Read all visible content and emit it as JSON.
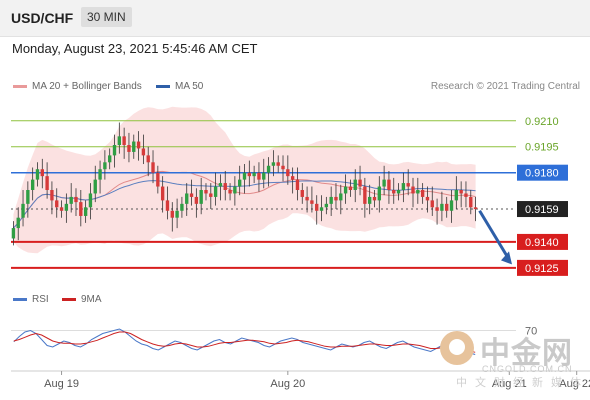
{
  "header": {
    "symbol": "USD/CHF",
    "timeframe": "30 MIN"
  },
  "datetime": "Monday, August 23, 2021 5:45:46 AM CET",
  "legend_main": [
    {
      "label": "MA 20 + Bollinger Bands",
      "color": "#e99a9a"
    },
    {
      "label": "MA 50",
      "color": "#2e5fa8"
    }
  ],
  "credit": "Research © 2021 Trading Central",
  "legend_rsi": [
    {
      "label": "RSI",
      "color": "#4a78c8"
    },
    {
      "label": "9MA",
      "color": "#cc2222"
    }
  ],
  "colors": {
    "up": "#2f9e44",
    "down": "#d63a3a",
    "resistance": "#8fc23e",
    "pivot": "#2e6fd8",
    "support": "#d81e1e",
    "current": "#222222"
  },
  "watermark": {
    "name": "中金网",
    "url": "CNGOLD.COM.CN",
    "sub": "中文财经新媒体"
  },
  "chart_data": {
    "type": "candlestick",
    "y_range": [
      0.9118,
      0.9222
    ],
    "levels": [
      {
        "label": "0.9210",
        "value": 0.921,
        "kind": "resistance"
      },
      {
        "label": "0.9195",
        "value": 0.9195,
        "kind": "resistance"
      },
      {
        "label": "0.9180",
        "value": 0.918,
        "kind": "pivot"
      },
      {
        "label": "0.9159",
        "value": 0.9159,
        "kind": "current"
      },
      {
        "label": "0.9140",
        "value": 0.914,
        "kind": "support"
      },
      {
        "label": "0.9125",
        "value": 0.9125,
        "kind": "support"
      }
    ],
    "x_ticks": [
      {
        "label": "Aug 19",
        "index": 10
      },
      {
        "label": "Aug 20",
        "index": 57
      },
      {
        "label": "Aug 21",
        "index": 103
      },
      {
        "label": "Aug 22",
        "index": 117
      }
    ],
    "closes": [
      0.9148,
      0.9154,
      0.9162,
      0.917,
      0.9176,
      0.9182,
      0.9178,
      0.917,
      0.9164,
      0.916,
      0.9158,
      0.9162,
      0.9166,
      0.9163,
      0.9155,
      0.916,
      0.9168,
      0.9176,
      0.9182,
      0.9186,
      0.919,
      0.9196,
      0.9201,
      0.9196,
      0.9192,
      0.9198,
      0.9194,
      0.919,
      0.9186,
      0.918,
      0.9172,
      0.9164,
      0.9158,
      0.9154,
      0.9158,
      0.9162,
      0.9168,
      0.9166,
      0.9162,
      0.917,
      0.9168,
      0.9166,
      0.9172,
      0.9174,
      0.917,
      0.9168,
      0.9172,
      0.9176,
      0.918,
      0.9178,
      0.918,
      0.9176,
      0.918,
      0.9184,
      0.9186,
      0.9184,
      0.9182,
      0.9178,
      0.9176,
      0.917,
      0.9166,
      0.9164,
      0.9162,
      0.9158,
      0.916,
      0.9162,
      0.9166,
      0.9164,
      0.9168,
      0.9172,
      0.917,
      0.9176,
      0.9172,
      0.9162,
      0.9166,
      0.9164,
      0.9172,
      0.9176,
      0.917,
      0.9168,
      0.917,
      0.9174,
      0.9172,
      0.9168,
      0.917,
      0.9166,
      0.9164,
      0.916,
      0.9158,
      0.9162,
      0.9158,
      0.9164,
      0.917,
      0.9168,
      0.9166,
      0.916,
      0.9159
    ],
    "rsi": {
      "levels_shown": [
        70
      ],
      "rsi_values": [
        55,
        62,
        68,
        70,
        66,
        58,
        50,
        48,
        52,
        56,
        54,
        50,
        48,
        52,
        58,
        62,
        66,
        68,
        70,
        72,
        68,
        62,
        56,
        52,
        50,
        46,
        44,
        48,
        52,
        56,
        54,
        50,
        46,
        44,
        48,
        52,
        56,
        58,
        54,
        52,
        56,
        60,
        58,
        56,
        54,
        50,
        48,
        52,
        56,
        58,
        60,
        58,
        54,
        52,
        50,
        48,
        46,
        44,
        48,
        52,
        50,
        48,
        50,
        54,
        56,
        52,
        48,
        46,
        50,
        54,
        56,
        52,
        48,
        46,
        44,
        42,
        46,
        50,
        52,
        48,
        44,
        42,
        40,
        38
      ],
      "ma9_values": [
        56,
        58,
        61,
        64,
        66,
        64,
        60,
        56,
        54,
        53,
        53,
        52,
        52,
        53,
        55,
        57,
        60,
        63,
        66,
        68,
        68,
        66,
        62,
        58,
        55,
        52,
        50,
        49,
        50,
        52,
        53,
        52,
        50,
        48,
        48,
        49,
        51,
        53,
        54,
        54,
        55,
        56,
        57,
        57,
        56,
        55,
        53,
        52,
        53,
        54,
        56,
        57,
        56,
        55,
        53,
        51,
        49,
        48,
        48,
        49,
        49,
        49,
        50,
        51,
        52,
        52,
        51,
        50,
        50,
        51,
        52,
        52,
        51,
        50,
        48,
        46,
        46,
        47,
        48,
        48,
        47,
        45,
        43,
        41
      ]
    }
  }
}
